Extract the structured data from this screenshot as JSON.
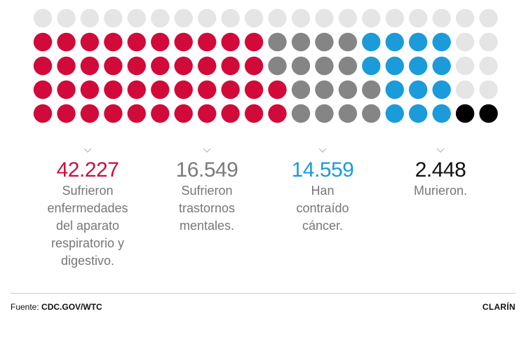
{
  "chart_data": {
    "type": "dot-grid",
    "columns": 20,
    "rows": [
      [
        "gray",
        "gray",
        "gray",
        "gray",
        "gray",
        "gray",
        "gray",
        "gray",
        "gray",
        "gray",
        "gray",
        "gray",
        "gray",
        "gray",
        "gray",
        "gray",
        "gray",
        "gray",
        "gray",
        "gray"
      ],
      [
        "red",
        "red",
        "red",
        "red",
        "red",
        "red",
        "red",
        "red",
        "red",
        "red",
        "dgray",
        "dgray",
        "dgray",
        "dgray",
        "blue",
        "blue",
        "blue",
        "blue",
        "gray",
        "gray"
      ],
      [
        "red",
        "red",
        "red",
        "red",
        "red",
        "red",
        "red",
        "red",
        "red",
        "red",
        "dgray",
        "dgray",
        "dgray",
        "dgray",
        "blue",
        "blue",
        "blue",
        "blue",
        "gray",
        "gray"
      ],
      [
        "red",
        "red",
        "red",
        "red",
        "red",
        "red",
        "red",
        "red",
        "red",
        "red",
        "red",
        "dgray",
        "dgray",
        "dgray",
        "dgray",
        "blue",
        "blue",
        "blue",
        "gray",
        "gray"
      ],
      [
        "red",
        "red",
        "red",
        "red",
        "red",
        "red",
        "red",
        "red",
        "red",
        "red",
        "red",
        "dgray",
        "dgray",
        "dgray",
        "dgray",
        "blue",
        "blue",
        "blue",
        "black",
        "black"
      ]
    ],
    "palette": {
      "red": "#d10a3a",
      "dgray": "#858585",
      "blue": "#1b9bd9",
      "black": "#000000",
      "gray": "#e5e5e5"
    },
    "series": [
      {
        "value": "42.227",
        "label": "Sufrieron enfermedades del aparato respiratorio y digestivo.",
        "color": "#c8103e"
      },
      {
        "value": "16.549",
        "label": "Sufrieron trastornos mentales.",
        "color": "#7a7a7a"
      },
      {
        "value": "14.559",
        "label": "Han contraído cáncer.",
        "color": "#1b9bd9"
      },
      {
        "value": "2.448",
        "label": "Murieron.",
        "color": "#111111"
      }
    ]
  },
  "stats": [
    {
      "value": "42.227",
      "lines": [
        "Sufrieron",
        "enfermedades",
        "del aparato",
        "respiratorio y",
        "digestivo."
      ]
    },
    {
      "value": "16.549",
      "lines": [
        "Sufrieron",
        "trastornos",
        "mentales."
      ]
    },
    {
      "value": "14.559",
      "lines": [
        "Han",
        "contraído",
        "cáncer."
      ]
    },
    {
      "value": "2.448",
      "lines": [
        "Murieron."
      ]
    }
  ],
  "footer": {
    "source_label": "Fuente:",
    "source_value": "CDC.GOV/WTC",
    "brand": "CLARÍN"
  }
}
